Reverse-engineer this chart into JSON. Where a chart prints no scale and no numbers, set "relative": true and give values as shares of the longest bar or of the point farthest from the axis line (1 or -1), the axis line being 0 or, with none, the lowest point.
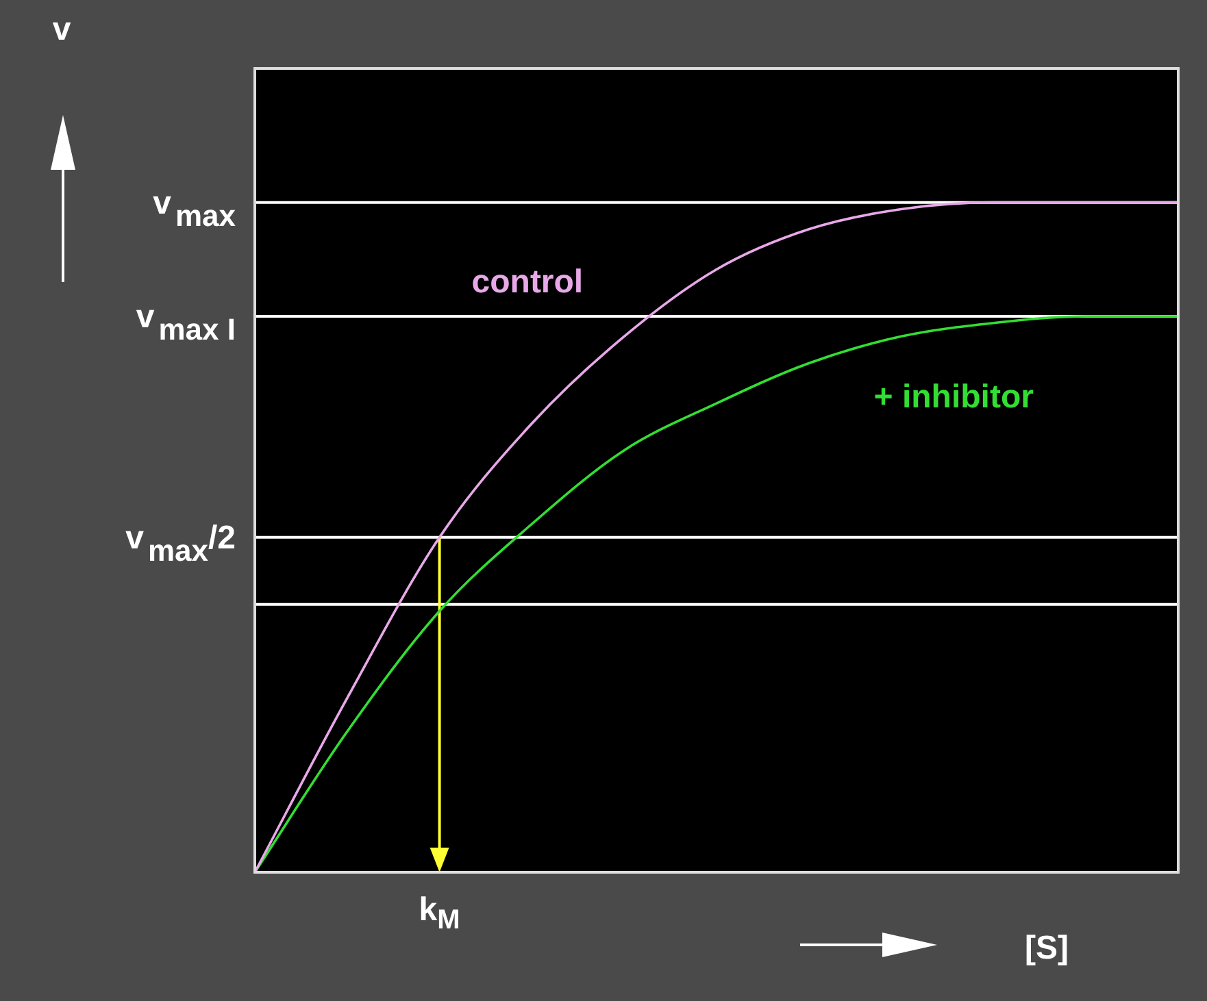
{
  "chart_data": {
    "type": "line",
    "relative": true,
    "xlabel": "[S]",
    "legend": false,
    "marker": "none",
    "line_style": "solid",
    "categories": [
      null,
      null,
      null,
      null,
      null,
      null,
      null,
      null,
      null,
      null,
      null
    ],
    "series": [
      {
        "name": "control",
        "color": "#e8a8e8",
        "values": [
          0,
          0.26,
          0.5,
          0.67,
          0.8,
          0.9,
          0.96,
          0.99,
          1,
          1,
          1
        ]
      },
      {
        "name": "+ inhibitor",
        "color": "#33dd33",
        "values": [
          0,
          0.21,
          0.39,
          0.52,
          0.63,
          0.7,
          0.76,
          0.8,
          0.82,
          0.83,
          0.83
        ]
      }
    ],
    "ref_lines": [
      {
        "axis": "y",
        "value": 1,
        "label": "v$_{max}$",
        "color": "#ffffff"
      },
      {
        "axis": "y",
        "value": 0.83,
        "label": "v$_{max I}$",
        "color": "#ffffff"
      },
      {
        "axis": "y",
        "value": 0.5,
        "label": "v$_{max}$/2",
        "color": "#ffffff"
      },
      {
        "axis": "y",
        "value": 0.4,
        "label": null,
        "color": "#ffffff"
      }
    ],
    "annotations": [
      "v",
      "k$_{M}$"
    ]
  }
}
